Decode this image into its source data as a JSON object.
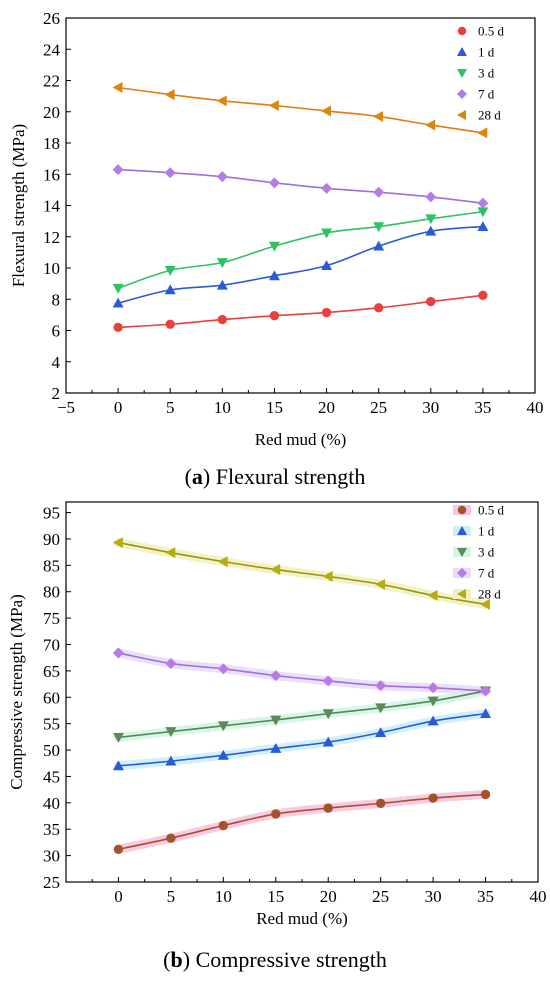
{
  "chart_data": [
    {
      "type": "scatter",
      "panel": "a",
      "caption_letter": "a",
      "caption_text": "Flexural strength",
      "xlabel": "Red mud (%)",
      "ylabel": "Flexural strength (MPa)",
      "xlim": [
        -5,
        40
      ],
      "ylim": [
        2,
        26
      ],
      "xticks": [
        -5,
        0,
        5,
        10,
        15,
        20,
        25,
        30,
        35,
        40
      ],
      "yticks": [
        2,
        4,
        6,
        8,
        10,
        12,
        14,
        16,
        18,
        20,
        22,
        24,
        26
      ],
      "grid": false,
      "legend_position": "top-right",
      "x": [
        0,
        5,
        10,
        15,
        20,
        25,
        30,
        35
      ],
      "series": [
        {
          "name": "0.5 d",
          "marker": "circle",
          "color": "#e8413d",
          "line_color": "#e8413d",
          "values": [
            6.2,
            6.4,
            6.7,
            6.95,
            7.15,
            7.45,
            7.85,
            8.25
          ]
        },
        {
          "name": "1 d",
          "marker": "triangle-up",
          "color": "#2a5bd7",
          "line_color": "#2a5bd7",
          "values": [
            7.75,
            8.6,
            8.9,
            9.5,
            10.15,
            11.4,
            12.35,
            12.65
          ]
        },
        {
          "name": "3 d",
          "marker": "triangle-down",
          "color": "#2ec262",
          "line_color": "#2ec262",
          "values": [
            8.7,
            9.85,
            10.35,
            11.4,
            12.25,
            12.65,
            13.15,
            13.6
          ]
        },
        {
          "name": "7 d",
          "marker": "diamond",
          "color": "#b77be8",
          "line_color": "#9d6fd9",
          "values": [
            16.3,
            16.1,
            15.85,
            15.45,
            15.1,
            14.85,
            14.55,
            14.15
          ]
        },
        {
          "name": "28 d",
          "marker": "triangle-left",
          "color": "#d9870f",
          "line_color": "#e57a10",
          "values": [
            21.55,
            21.1,
            20.7,
            20.4,
            20.05,
            19.7,
            19.15,
            18.65
          ]
        }
      ]
    },
    {
      "type": "scatter",
      "panel": "b",
      "caption_letter": "b",
      "caption_text": "Compressive strength",
      "xlabel": "Red mud (%)",
      "ylabel": "Compressive strength (MPa)",
      "xlim": [
        -5,
        40
      ],
      "ylim": [
        25,
        97
      ],
      "xticks": [
        0,
        5,
        10,
        15,
        20,
        25,
        30,
        35,
        40
      ],
      "yticks": [
        25,
        30,
        35,
        40,
        45,
        50,
        55,
        60,
        65,
        70,
        75,
        80,
        85,
        90,
        95
      ],
      "grid": false,
      "legend_position": "top-right",
      "x": [
        0,
        5,
        10,
        15,
        20,
        25,
        30,
        35
      ],
      "series": [
        {
          "name": "0.5 d",
          "marker": "circle",
          "color": "#a4522d",
          "line_color": "#a4522d",
          "band_color": "#f7c5e0",
          "values": [
            31.2,
            33.3,
            35.7,
            37.9,
            39.0,
            39.9,
            40.9,
            41.6
          ]
        },
        {
          "name": "1 d",
          "marker": "triangle-up",
          "color": "#2a5bd7",
          "line_color": "#2a5bd7",
          "band_color": "#cdeefb",
          "values": [
            47.0,
            47.9,
            49.0,
            50.3,
            51.5,
            53.3,
            55.5,
            56.9
          ]
        },
        {
          "name": "3 d",
          "marker": "triangle-down",
          "color": "#5b8a5b",
          "line_color": "#4f8a55",
          "band_color": "#d3f5e4",
          "values": [
            52.4,
            53.5,
            54.6,
            55.7,
            56.9,
            58.0,
            59.3,
            61.2
          ]
        },
        {
          "name": "7 d",
          "marker": "diamond",
          "color": "#b77be8",
          "line_color": "#9d6fd9",
          "band_color": "#eadcf8",
          "values": [
            68.4,
            66.4,
            65.4,
            64.1,
            63.1,
            62.2,
            61.8,
            61.2
          ]
        },
        {
          "name": "28 d",
          "marker": "triangle-left",
          "color": "#b5ad10",
          "line_color": "#9e9410",
          "band_color": "#f2f0c0",
          "values": [
            89.3,
            87.4,
            85.7,
            84.2,
            82.9,
            81.4,
            79.3,
            77.6
          ]
        }
      ]
    }
  ]
}
